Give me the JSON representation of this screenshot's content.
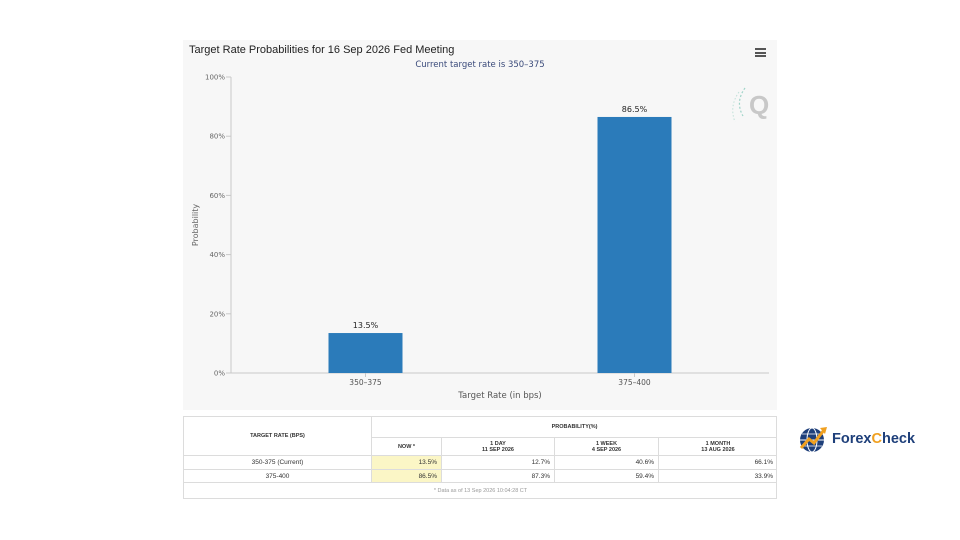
{
  "header": {
    "title": "Target Rate Probabilities for 16 Sep 2026 Fed Meeting",
    "subtitle": "Current target rate is 350–375",
    "menu_icon": "hamburger-menu-icon"
  },
  "watermark": {
    "letter": "Q"
  },
  "chart_data": {
    "type": "bar",
    "title": "Target Rate Probabilities for 16 Sep 2026 Fed Meeting",
    "subtitle": "Current target rate is 350–375",
    "categories": [
      "350–375",
      "375–400"
    ],
    "values": [
      13.5,
      86.5
    ],
    "data_labels": [
      "13.5%",
      "86.5%"
    ],
    "xlabel": "Target Rate (in bps)",
    "ylabel": "Probability",
    "ylim": [
      0,
      100
    ],
    "yticks": [
      "0%",
      "20%",
      "40%",
      "60%",
      "80%",
      "100%"
    ],
    "ytick_values": [
      0,
      20,
      40,
      60,
      80,
      100
    ],
    "bar_color": "#2b7bba",
    "grid": false,
    "legend": "none"
  },
  "table": {
    "col_header_rate": "TARGET RATE (BPS)",
    "group_header": "PROBABILITY(%)",
    "columns": [
      {
        "line1": "NOW *",
        "line2": ""
      },
      {
        "line1": "1 DAY",
        "line2": "11 SEP 2026"
      },
      {
        "line1": "1 WEEK",
        "line2": "4 SEP 2026"
      },
      {
        "line1": "1 MONTH",
        "line2": "13 AUG 2026"
      }
    ],
    "rows": [
      {
        "rate": "350-375 (Current)",
        "values": [
          "13.5%",
          "12.7%",
          "40.6%",
          "66.1%"
        ]
      },
      {
        "rate": "375-400",
        "values": [
          "86.5%",
          "87.3%",
          "59.4%",
          "33.9%"
        ]
      }
    ],
    "footnote": "* Data as of 13 Sep 2026 10:04:28 CT",
    "highlight_color": "#fbf6c6"
  },
  "brand": {
    "name_part1": "Forex",
    "name_x": "",
    "name_part2": "Check",
    "full": "ForexCheck",
    "icon": "globe-arrow-logo-icon"
  }
}
